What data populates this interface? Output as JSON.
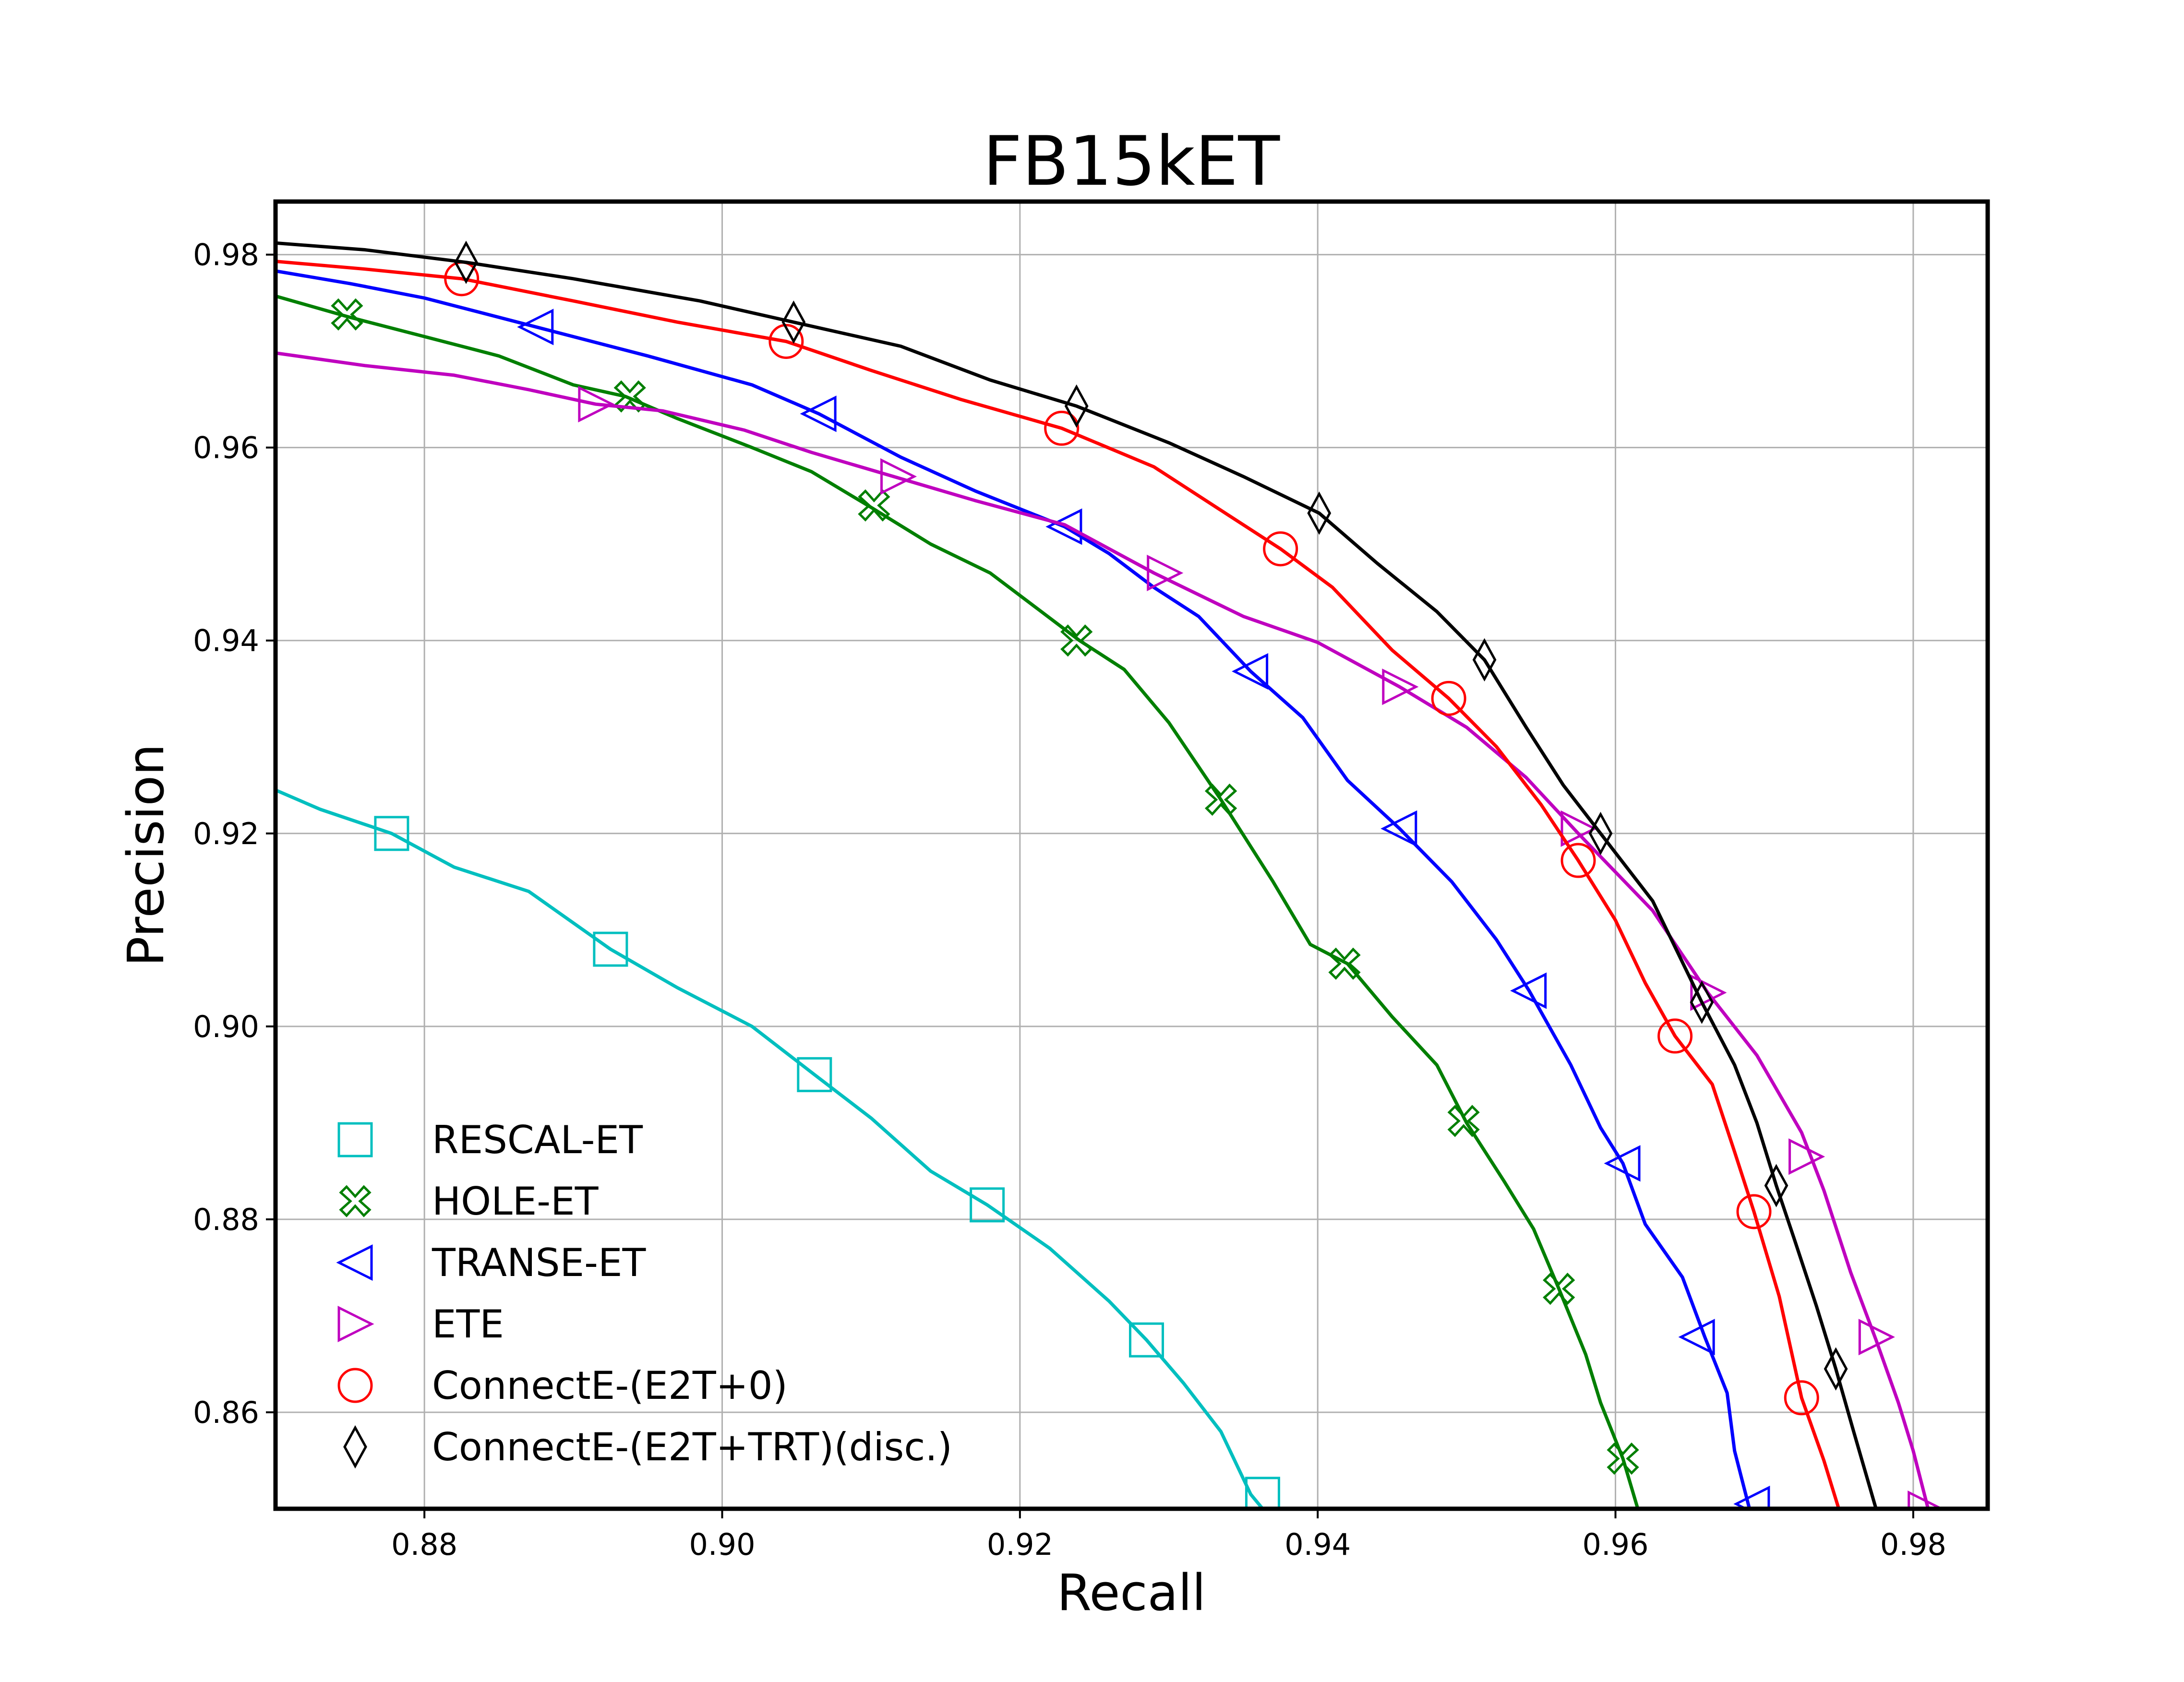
{
  "chart_data": {
    "type": "line",
    "title": "FB15kET",
    "xlabel": "Recall",
    "ylabel": "Precision",
    "xlim": [
      0.87,
      0.985
    ],
    "ylim": [
      0.85,
      0.9855
    ],
    "xticks": [
      0.88,
      0.9,
      0.92,
      0.94,
      0.96,
      0.98
    ],
    "yticks": [
      0.86,
      0.88,
      0.9,
      0.92,
      0.94,
      0.96,
      0.98
    ],
    "grid": true,
    "legend_position": "lower-left",
    "series": [
      {
        "name": "RESCAL-ET",
        "color": "#00bfbf",
        "marker": "square",
        "points": [
          [
            0.87,
            0.9245
          ],
          [
            0.873,
            0.9225
          ],
          [
            0.8778,
            0.92
          ],
          [
            0.882,
            0.9165
          ],
          [
            0.887,
            0.914
          ],
          [
            0.8925,
            0.908
          ],
          [
            0.897,
            0.904
          ],
          [
            0.902,
            0.9
          ],
          [
            0.9062,
            0.895
          ],
          [
            0.91,
            0.8905
          ],
          [
            0.914,
            0.885
          ],
          [
            0.9178,
            0.8815
          ],
          [
            0.922,
            0.877
          ],
          [
            0.926,
            0.8715
          ],
          [
            0.9285,
            0.8675
          ],
          [
            0.931,
            0.863
          ],
          [
            0.9335,
            0.858
          ],
          [
            0.9355,
            0.8515
          ],
          [
            0.9363,
            0.85
          ]
        ],
        "markers": [
          [
            0.8778,
            0.92
          ],
          [
            0.8925,
            0.908
          ],
          [
            0.9062,
            0.895
          ],
          [
            0.9178,
            0.8815
          ],
          [
            0.9285,
            0.8675
          ],
          [
            0.9363,
            0.8515
          ]
        ]
      },
      {
        "name": "HOLE-ET",
        "color": "#007f00",
        "marker": "x-cross",
        "points": [
          [
            0.87,
            0.9757
          ],
          [
            0.875,
            0.9735
          ],
          [
            0.88,
            0.9715
          ],
          [
            0.885,
            0.9695
          ],
          [
            0.89,
            0.9665
          ],
          [
            0.8935,
            0.9653
          ],
          [
            0.897,
            0.963
          ],
          [
            0.902,
            0.96
          ],
          [
            0.906,
            0.9575
          ],
          [
            0.91,
            0.9538
          ],
          [
            0.914,
            0.95
          ],
          [
            0.918,
            0.947
          ],
          [
            0.921,
            0.9435
          ],
          [
            0.924,
            0.94
          ],
          [
            0.927,
            0.937
          ],
          [
            0.93,
            0.9315
          ],
          [
            0.9335,
            0.9235
          ],
          [
            0.937,
            0.915
          ],
          [
            0.9395,
            0.9085
          ],
          [
            0.942,
            0.9065
          ],
          [
            0.945,
            0.901
          ],
          [
            0.948,
            0.896
          ],
          [
            0.95,
            0.89
          ],
          [
            0.9525,
            0.884
          ],
          [
            0.9545,
            0.879
          ],
          [
            0.9562,
            0.8728
          ],
          [
            0.958,
            0.866
          ],
          [
            0.959,
            0.861
          ],
          [
            0.9605,
            0.8552
          ],
          [
            0.9615,
            0.85
          ]
        ],
        "markers": [
          [
            0.8748,
            0.9738
          ],
          [
            0.8938,
            0.9653
          ],
          [
            0.9102,
            0.954
          ],
          [
            0.9238,
            0.94
          ],
          [
            0.9335,
            0.9235
          ],
          [
            0.9418,
            0.9065
          ],
          [
            0.9498,
            0.8902
          ],
          [
            0.9562,
            0.8728
          ],
          [
            0.9605,
            0.8552
          ]
        ]
      },
      {
        "name": "TRANSE-ET",
        "color": "#0000ff",
        "marker": "triangle-left",
        "points": [
          [
            0.87,
            0.9783
          ],
          [
            0.875,
            0.977
          ],
          [
            0.88,
            0.9755
          ],
          [
            0.8875,
            0.9725
          ],
          [
            0.895,
            0.9695
          ],
          [
            0.902,
            0.9665
          ],
          [
            0.9065,
            0.9635
          ],
          [
            0.912,
            0.959
          ],
          [
            0.917,
            0.9555
          ],
          [
            0.923,
            0.9518
          ],
          [
            0.926,
            0.949
          ],
          [
            0.929,
            0.9455
          ],
          [
            0.932,
            0.9425
          ],
          [
            0.9355,
            0.9368
          ],
          [
            0.939,
            0.932
          ],
          [
            0.942,
            0.9255
          ],
          [
            0.9455,
            0.9205
          ],
          [
            0.949,
            0.915
          ],
          [
            0.952,
            0.909
          ],
          [
            0.9542,
            0.9037
          ],
          [
            0.957,
            0.896
          ],
          [
            0.959,
            0.8895
          ],
          [
            0.9605,
            0.8858
          ],
          [
            0.962,
            0.8795
          ],
          [
            0.9645,
            0.874
          ],
          [
            0.966,
            0.8678
          ],
          [
            0.9675,
            0.862
          ],
          [
            0.968,
            0.856
          ],
          [
            0.969,
            0.85
          ]
        ],
        "markers": [
          [
            0.8875,
            0.9725
          ],
          [
            0.9065,
            0.9635
          ],
          [
            0.923,
            0.9518
          ],
          [
            0.9355,
            0.9368
          ],
          [
            0.9455,
            0.9205
          ],
          [
            0.9542,
            0.9037
          ],
          [
            0.9605,
            0.8858
          ],
          [
            0.9655,
            0.8678
          ],
          [
            0.9692,
            0.8505
          ]
        ]
      },
      {
        "name": "ETE",
        "color": "#bf00bf",
        "marker": "triangle-right",
        "points": [
          [
            0.87,
            0.9698
          ],
          [
            0.876,
            0.9685
          ],
          [
            0.882,
            0.9675
          ],
          [
            0.887,
            0.966
          ],
          [
            0.8915,
            0.9645
          ],
          [
            0.896,
            0.9638
          ],
          [
            0.9015,
            0.9618
          ],
          [
            0.906,
            0.9595
          ],
          [
            0.9115,
            0.957
          ],
          [
            0.917,
            0.9545
          ],
          [
            0.923,
            0.952
          ],
          [
            0.929,
            0.947
          ],
          [
            0.935,
            0.9425
          ],
          [
            0.94,
            0.9398
          ],
          [
            0.9455,
            0.9352
          ],
          [
            0.95,
            0.931
          ],
          [
            0.954,
            0.9258
          ],
          [
            0.9575,
            0.92
          ],
          [
            0.9625,
            0.912
          ],
          [
            0.9662,
            0.9035
          ],
          [
            0.9695,
            0.897
          ],
          [
            0.9725,
            0.889
          ],
          [
            0.974,
            0.883
          ],
          [
            0.9758,
            0.8745
          ],
          [
            0.9775,
            0.8675
          ],
          [
            0.979,
            0.861
          ],
          [
            0.98,
            0.856
          ],
          [
            0.981,
            0.85
          ]
        ],
        "markers": [
          [
            0.8915,
            0.9645
          ],
          [
            0.9118,
            0.957
          ],
          [
            0.9297,
            0.947
          ],
          [
            0.9455,
            0.9352
          ],
          [
            0.9575,
            0.9205
          ],
          [
            0.9662,
            0.9035
          ],
          [
            0.9728,
            0.8865
          ],
          [
            0.9775,
            0.8678
          ],
          [
            0.9808,
            0.85
          ]
        ]
      },
      {
        "name": "ConnectE-(E2T+0)",
        "color": "#ff0000",
        "marker": "circle",
        "points": [
          [
            0.87,
            0.9793
          ],
          [
            0.876,
            0.9785
          ],
          [
            0.8825,
            0.9775
          ],
          [
            0.89,
            0.9752
          ],
          [
            0.897,
            0.973
          ],
          [
            0.9043,
            0.971
          ],
          [
            0.91,
            0.968
          ],
          [
            0.916,
            0.965
          ],
          [
            0.9228,
            0.962
          ],
          [
            0.929,
            0.958
          ],
          [
            0.934,
            0.953
          ],
          [
            0.9375,
            0.9495
          ],
          [
            0.941,
            0.9455
          ],
          [
            0.945,
            0.939
          ],
          [
            0.9488,
            0.934
          ],
          [
            0.952,
            0.929
          ],
          [
            0.955,
            0.923
          ],
          [
            0.9575,
            0.9172
          ],
          [
            0.96,
            0.911
          ],
          [
            0.962,
            0.9045
          ],
          [
            0.964,
            0.899
          ],
          [
            0.9665,
            0.894
          ],
          [
            0.968,
            0.887
          ],
          [
            0.9693,
            0.8808
          ],
          [
            0.971,
            0.872
          ],
          [
            0.9725,
            0.8615
          ],
          [
            0.974,
            0.855
          ],
          [
            0.975,
            0.85
          ]
        ],
        "markers": [
          [
            0.8825,
            0.9775
          ],
          [
            0.9043,
            0.971
          ],
          [
            0.9228,
            0.962
          ],
          [
            0.9375,
            0.9495
          ],
          [
            0.9488,
            0.934
          ],
          [
            0.9575,
            0.9172
          ],
          [
            0.964,
            0.899
          ],
          [
            0.9693,
            0.8808
          ],
          [
            0.9725,
            0.8615
          ]
        ]
      },
      {
        "name": "ConnectE-(E2T+TRT)(disc.)",
        "color": "#000000",
        "marker": "diamond-thin",
        "points": [
          [
            0.87,
            0.9812
          ],
          [
            0.876,
            0.9805
          ],
          [
            0.8828,
            0.9792
          ],
          [
            0.89,
            0.9775
          ],
          [
            0.8985,
            0.9752
          ],
          [
            0.9048,
            0.973
          ],
          [
            0.912,
            0.9705
          ],
          [
            0.918,
            0.967
          ],
          [
            0.9238,
            0.9643
          ],
          [
            0.93,
            0.9605
          ],
          [
            0.935,
            0.957
          ],
          [
            0.9401,
            0.9532
          ],
          [
            0.944,
            0.948
          ],
          [
            0.948,
            0.943
          ],
          [
            0.9512,
            0.938
          ],
          [
            0.954,
            0.931
          ],
          [
            0.9565,
            0.925
          ],
          [
            0.959,
            0.92
          ],
          [
            0.9625,
            0.913
          ],
          [
            0.9658,
            0.9025
          ],
          [
            0.968,
            0.896
          ],
          [
            0.9695,
            0.89
          ],
          [
            0.9708,
            0.8835
          ],
          [
            0.972,
            0.878
          ],
          [
            0.9735,
            0.871
          ],
          [
            0.9748,
            0.8645
          ],
          [
            0.976,
            0.858
          ],
          [
            0.9775,
            0.85
          ]
        ],
        "markers": [
          [
            0.8828,
            0.9792
          ],
          [
            0.9048,
            0.973
          ],
          [
            0.9238,
            0.9643
          ],
          [
            0.9401,
            0.9532
          ],
          [
            0.9512,
            0.938
          ],
          [
            0.959,
            0.92
          ],
          [
            0.9658,
            0.9025
          ],
          [
            0.9708,
            0.8835
          ],
          [
            0.9748,
            0.8645
          ]
        ]
      }
    ]
  }
}
